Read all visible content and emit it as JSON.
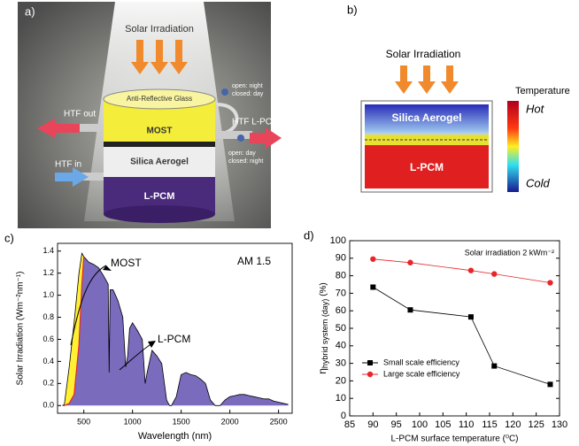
{
  "panel_a": {
    "label": "a)",
    "solar": "Solar Irradiation",
    "glass": "Anti-Reflective Glass",
    "valve_top": [
      "open: night",
      "closed: day"
    ],
    "htf_out": "HTF out",
    "most": "MOST",
    "htf_lpcm": "HTF L-PCM",
    "valve_bottom": [
      "open: day",
      "closed: night"
    ],
    "aerogel": "Silica Aerogel",
    "htf_in": "HTF in",
    "lpcm": "L-PCM"
  },
  "panel_b": {
    "label": "b)",
    "solar": "Solar Irradiation",
    "temperature": "Temperature",
    "hot": "Hot",
    "aerogel": "Silica Aerogel",
    "lpcm": "L-PCM",
    "cold": "Cold"
  },
  "chart_data": [
    {
      "type": "area",
      "panel_label": "c)",
      "x_label": "Wavelength (nm)",
      "y_label": "Solar Irradiation (Wm⁻²nm⁻¹)",
      "annotations": [
        "MOST",
        "L-PCM",
        "AM 1.5"
      ],
      "x": [
        280,
        300,
        350,
        400,
        450,
        480,
        500,
        550,
        600,
        650,
        700,
        750,
        760,
        770,
        800,
        850,
        900,
        930,
        950,
        970,
        1000,
        1050,
        1100,
        1130,
        1150,
        1200,
        1250,
        1300,
        1350,
        1380,
        1400,
        1450,
        1500,
        1550,
        1600,
        1650,
        1700,
        1750,
        1800,
        1850,
        1900,
        1950,
        2000,
        2050,
        2100,
        2150,
        2200,
        2250,
        2300,
        2350,
        2400,
        2450,
        2500,
        2550,
        2600
      ],
      "series": [
        {
          "color": "#000000",
          "fill": "#7b6bbd",
          "values": [
            0,
            0.01,
            0.35,
            0.75,
            1.2,
            1.38,
            1.35,
            1.3,
            1.28,
            1.25,
            1.18,
            1.1,
            0.3,
            1.05,
            1.05,
            0.95,
            0.8,
            0.35,
            0.45,
            0.7,
            0.75,
            0.68,
            0.6,
            0.2,
            0.3,
            0.5,
            0.45,
            0.38,
            0.05,
            0,
            0,
            0.08,
            0.28,
            0.3,
            0.28,
            0.27,
            0.24,
            0.2,
            0.05,
            0,
            0,
            0.05,
            0.08,
            0.09,
            0.1,
            0.1,
            0.09,
            0.08,
            0.07,
            0.06,
            0.06,
            0.04,
            0.03,
            0.02,
            0.01
          ]
        },
        {
          "color": "#e8262a",
          "fill": "#fff033",
          "values": [
            0,
            0,
            0.02,
            0.1,
            0.55,
            1.1,
            1.35,
            null,
            null,
            null,
            null,
            null,
            null,
            null,
            null,
            null,
            null,
            null,
            null,
            null,
            null,
            null,
            null,
            null,
            null,
            null,
            null,
            null,
            null,
            null,
            null,
            null,
            null,
            null,
            null,
            null,
            null,
            null,
            null,
            null,
            null,
            null,
            null,
            null,
            null,
            null,
            null,
            null,
            null,
            null,
            null,
            null,
            null,
            null,
            null
          ]
        }
      ],
      "xlim": [
        230,
        2640
      ],
      "xticks": [
        500,
        1000,
        1500,
        2000,
        2500
      ],
      "ylim": [
        -0.07,
        1.47
      ],
      "yticks": [
        {
          "value": 0,
          "label": "0.0"
        },
        0.2,
        0.4,
        0.6,
        0.8,
        {
          "value": 1,
          "label": "1.0"
        },
        1.2,
        1.4
      ]
    },
    {
      "type": "line",
      "panel_label": "d)",
      "x_label": "L-PCM surface temperature (⁰C)",
      "y_label": {
        "symbol": "η",
        "subscript": "hybrid system (day)",
        "unit": " (%)"
      },
      "annotation": "Solar irradiation 2 kWm⁻²",
      "x": [
        90,
        98,
        111,
        116,
        128
      ],
      "series": [
        {
          "name": "Small scale efficiency",
          "color": "#000000",
          "marker": "square",
          "values": [
            73.5,
            60.5,
            56.5,
            28.5,
            18
          ]
        },
        {
          "name": "Large scale efficiency",
          "color": "#e8262a",
          "marker": "circle",
          "values": [
            89.5,
            87.5,
            83,
            81,
            76
          ]
        }
      ],
      "xlim": [
        85,
        130
      ],
      "xticks": [
        85,
        90,
        95,
        100,
        105,
        110,
        115,
        120,
        125,
        130
      ],
      "ylim": [
        0,
        100
      ],
      "yticks": [
        0,
        10,
        20,
        30,
        40,
        50,
        60,
        70,
        80,
        90,
        100
      ],
      "mirror_y_ticks": true,
      "legend": "lower-left"
    }
  ]
}
